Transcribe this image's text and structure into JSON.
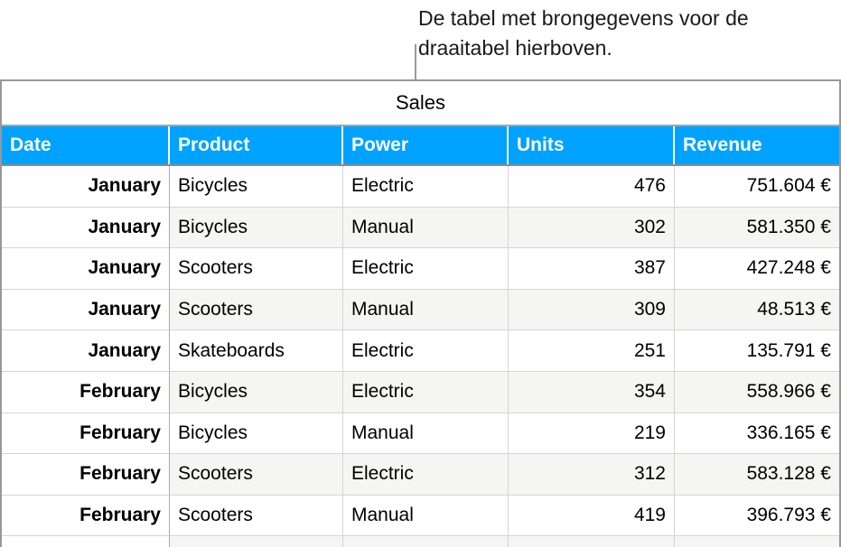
{
  "caption": {
    "line1": "De tabel met brongegevens voor de",
    "line2": "draaitabel hierboven."
  },
  "table": {
    "title": "Sales",
    "columns": [
      {
        "label": "Date"
      },
      {
        "label": "Product"
      },
      {
        "label": "Power"
      },
      {
        "label": "Units"
      },
      {
        "label": "Revenue"
      }
    ],
    "rows": [
      [
        "January",
        "Bicycles",
        "Electric",
        "476",
        "751.604 €"
      ],
      [
        "January",
        "Bicycles",
        "Manual",
        "302",
        "581.350 €"
      ],
      [
        "January",
        "Scooters",
        "Electric",
        "387",
        "427.248 €"
      ],
      [
        "January",
        "Scooters",
        "Manual",
        "309",
        "48.513 €"
      ],
      [
        "January",
        "Skateboards",
        "Electric",
        "251",
        "135.791 €"
      ],
      [
        "February",
        "Bicycles",
        "Electric",
        "354",
        "558.966 €"
      ],
      [
        "February",
        "Bicycles",
        "Manual",
        "219",
        "336.165 €"
      ],
      [
        "February",
        "Scooters",
        "Electric",
        "312",
        "583.128 €"
      ],
      [
        "February",
        "Scooters",
        "Manual",
        "419",
        "396.793 €"
      ]
    ]
  },
  "colors": {
    "header_bg": "#00A2FF",
    "header_text": "#FFFFFF",
    "alt_row_bg": "#F5F5F3",
    "connector": "#9A9A9A",
    "border_outer": "#979797",
    "border_title": "#A6A6A6",
    "border_header": "#8C8C8C",
    "border_cell": "#D5D5D5"
  }
}
